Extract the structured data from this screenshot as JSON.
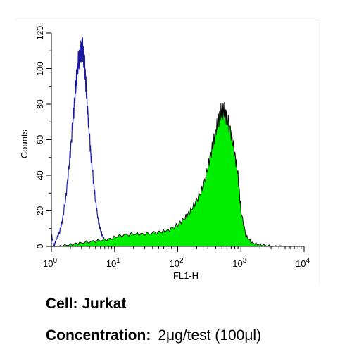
{
  "chart_data": {
    "type": "area",
    "x_scale": "log",
    "xlim": [
      1,
      10000
    ],
    "ylim": [
      0,
      120
    ],
    "xlabel": "FL1-H",
    "ylabel": "Counts",
    "x_ticks": [
      {
        "base": "10",
        "exp": "0"
      },
      {
        "base": "10",
        "exp": "1"
      },
      {
        "base": "10",
        "exp": "2"
      },
      {
        "base": "10",
        "exp": "3"
      },
      {
        "base": "10",
        "exp": "4"
      }
    ],
    "y_ticks": [
      "0",
      "20",
      "40",
      "60",
      "80",
      "100",
      "120"
    ],
    "grid": false,
    "series": [
      {
        "style": "outline",
        "color": "#1a1aa0",
        "x": [
          1.0,
          1.1,
          1.2,
          1.35,
          1.5,
          1.7,
          1.9,
          2.1,
          2.3,
          2.5,
          2.7,
          2.9,
          3.05,
          3.2,
          3.4,
          3.6,
          3.9,
          4.2,
          4.6,
          5.0,
          5.5,
          6.0,
          6.6,
          7.2,
          8.0,
          9.0,
          10.0
        ],
        "y": [
          7,
          0,
          4,
          8,
          15,
          28,
          45,
          62,
          80,
          95,
          105,
          108,
          112,
          109,
          100,
          85,
          68,
          52,
          38,
          25,
          15,
          9,
          5,
          2,
          1,
          0,
          0
        ]
      },
      {
        "style": "filled",
        "color": "#00ee00",
        "x": [
          1.3,
          2,
          3,
          5,
          8,
          12,
          20,
          30,
          50,
          70,
          100,
          130,
          160,
          200,
          250,
          300,
          350,
          400,
          450,
          500,
          550,
          600,
          700,
          800,
          900,
          1000,
          1200,
          1500,
          2000,
          3000,
          5000
        ],
        "y": [
          0,
          1,
          2,
          3,
          4,
          6,
          7,
          7,
          8,
          9,
          12,
          16,
          20,
          26,
          33,
          45,
          55,
          65,
          72,
          77,
          76,
          72,
          64,
          52,
          40,
          20,
          6,
          2,
          1,
          0,
          0
        ]
      }
    ]
  },
  "captions": {
    "cell": "Cell: Jurkat",
    "concentration_label": "Concentration:",
    "concentration_value": "2μg/test (100μl)"
  }
}
